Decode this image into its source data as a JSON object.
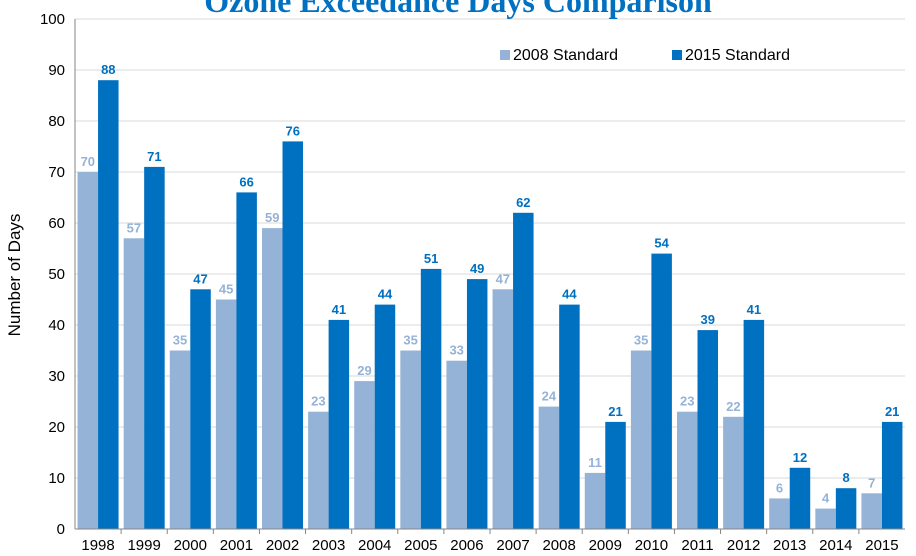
{
  "chart_data": {
    "type": "bar",
    "title": "Ozone Exceedance Days Comparison",
    "xlabel": "",
    "ylabel": "Number of Days",
    "ylim": [
      0,
      100
    ],
    "yticks": [
      0,
      10,
      20,
      30,
      40,
      50,
      60,
      70,
      80,
      90,
      100
    ],
    "grid": true,
    "legend": "top-right",
    "categories": [
      "1998",
      "1999",
      "2000",
      "2001",
      "2002",
      "2003",
      "2004",
      "2005",
      "2006",
      "2007",
      "2008",
      "2009",
      "2010",
      "2011",
      "2012",
      "2013",
      "2014",
      "2015"
    ],
    "series": [
      {
        "name": "2008 Standard",
        "color": "#95b3d7",
        "values": [
          70,
          57,
          35,
          45,
          59,
          23,
          29,
          35,
          33,
          47,
          24,
          11,
          35,
          23,
          22,
          6,
          4,
          7
        ]
      },
      {
        "name": "2015 Standard",
        "color": "#0070c0",
        "values": [
          88,
          71,
          47,
          66,
          76,
          41,
          44,
          51,
          49,
          62,
          44,
          21,
          54,
          39,
          41,
          12,
          8,
          21
        ]
      }
    ]
  }
}
